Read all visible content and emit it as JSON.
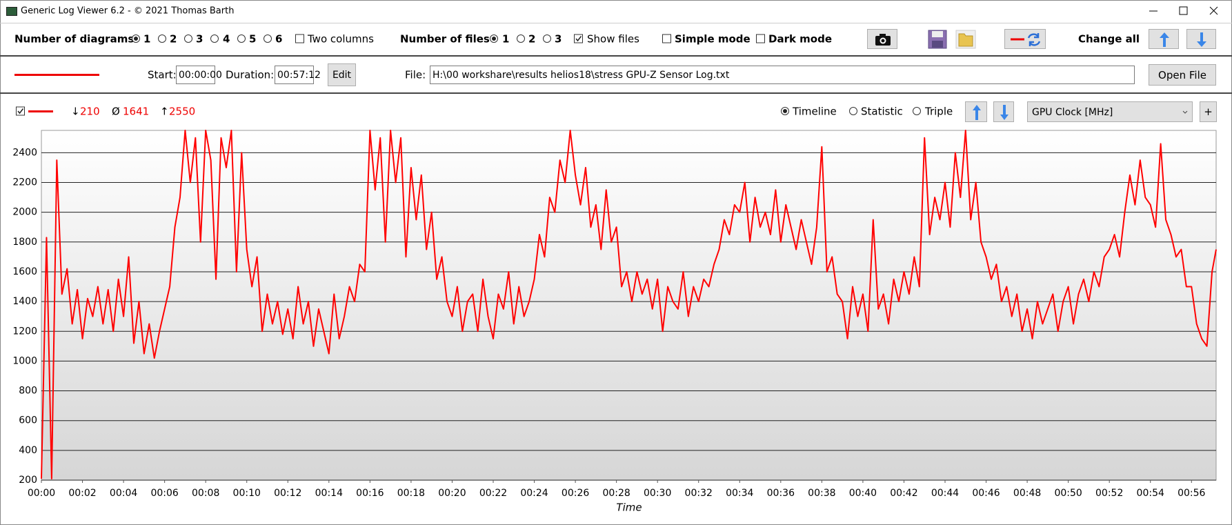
{
  "window": {
    "title": "Generic Log Viewer 6.2 - © 2021 Thomas Barth"
  },
  "toolbar": {
    "diagrams_label": "Number of diagrams",
    "diagram_options": [
      "1",
      "2",
      "3",
      "4",
      "5",
      "6"
    ],
    "two_columns": "Two columns",
    "files_label": "Number of files",
    "file_options": [
      "1",
      "2",
      "3"
    ],
    "show_files": "Show files",
    "simple_mode": "Simple mode",
    "dark_mode": "Dark mode",
    "change_all": "Change all"
  },
  "file_bar": {
    "start_label": "Start:",
    "start": "00:00:00",
    "duration_label": "Duration:",
    "duration": "00:57:12",
    "edit": "Edit",
    "file_label": "File:",
    "file_path": "H:\\00 workshare\\results helios18\\stress GPU-Z Sensor Log.txt",
    "open_file": "Open File"
  },
  "diagram_bar": {
    "min_symbol": "↓",
    "min": "210",
    "avg_symbol": "Ø",
    "avg": "1641",
    "max_symbol": "↑",
    "max": "2550",
    "views": [
      "Timeline",
      "Statistic",
      "Triple"
    ],
    "channel": "GPU Clock [MHz]",
    "add": "+"
  },
  "chart_data": {
    "type": "line",
    "x_label": "Time",
    "x": [
      0,
      0.25,
      0.5,
      0.75,
      1,
      1.25,
      1.5,
      1.75,
      2,
      2.25,
      2.5,
      2.75,
      3,
      3.25,
      3.5,
      3.75,
      4,
      4.25,
      4.5,
      4.75,
      5,
      5.25,
      5.5,
      5.75,
      6,
      6.25,
      6.5,
      6.75,
      7,
      7.25,
      7.5,
      7.75,
      8,
      8.25,
      8.5,
      8.75,
      9,
      9.25,
      9.5,
      9.75,
      10,
      10.25,
      10.5,
      10.75,
      11,
      11.25,
      11.5,
      11.75,
      12,
      12.25,
      12.5,
      12.75,
      13,
      13.25,
      13.5,
      13.75,
      14,
      14.25,
      14.5,
      14.75,
      15,
      15.25,
      15.5,
      15.75,
      16,
      16.25,
      16.5,
      16.75,
      17,
      17.25,
      17.5,
      17.75,
      18,
      18.25,
      18.5,
      18.75,
      19,
      19.25,
      19.5,
      19.75,
      20,
      20.25,
      20.5,
      20.75,
      21,
      21.25,
      21.5,
      21.75,
      22,
      22.25,
      22.5,
      22.75,
      23,
      23.25,
      23.5,
      23.75,
      24,
      24.25,
      24.5,
      24.75,
      25,
      25.25,
      25.5,
      25.75,
      26,
      26.25,
      26.5,
      26.75,
      27,
      27.25,
      27.5,
      27.75,
      28,
      28.25,
      28.5,
      28.75,
      29,
      29.25,
      29.5,
      29.75,
      30,
      30.25,
      30.5,
      30.75,
      31,
      31.25,
      31.5,
      31.75,
      32,
      32.25,
      32.5,
      32.75,
      33,
      33.25,
      33.5,
      33.75,
      34,
      34.25,
      34.5,
      34.75,
      35,
      35.25,
      35.5,
      35.75,
      36,
      36.25,
      36.5,
      36.75,
      37,
      37.25,
      37.5,
      37.75,
      38,
      38.25,
      38.5,
      38.75,
      39,
      39.25,
      39.5,
      39.75,
      40,
      40.25,
      40.5,
      40.75,
      41,
      41.25,
      41.5,
      41.75,
      42,
      42.25,
      42.5,
      42.75,
      43,
      43.25,
      43.5,
      43.75,
      44,
      44.25,
      44.5,
      44.75,
      45,
      45.25,
      45.5,
      45.75,
      46,
      46.25,
      46.5,
      46.75,
      47,
      47.25,
      47.5,
      47.75,
      48,
      48.25,
      48.5,
      48.75,
      49,
      49.25,
      49.5,
      49.75,
      50,
      50.25,
      50.5,
      50.75,
      51,
      51.25,
      51.5,
      51.75,
      52,
      52.25,
      52.5,
      52.75,
      53,
      53.25,
      53.5,
      53.75,
      54,
      54.25,
      54.5,
      54.75,
      55,
      55.25,
      55.5,
      55.75,
      56,
      56.25,
      56.5,
      56.75,
      57,
      57.2
    ],
    "series": [
      {
        "color": "#ff0000",
        "values": [
          210,
          1830,
          210,
          2350,
          1450,
          1620,
          1250,
          1480,
          1150,
          1420,
          1300,
          1500,
          1250,
          1480,
          1200,
          1550,
          1300,
          1700,
          1120,
          1400,
          1050,
          1250,
          1020,
          1200,
          1350,
          1500,
          1900,
          2100,
          2550,
          2200,
          2500,
          1800,
          2550,
          2350,
          1550,
          2500,
          2300,
          2550,
          1600,
          2400,
          1750,
          1500,
          1700,
          1200,
          1450,
          1250,
          1400,
          1180,
          1350,
          1150,
          1500,
          1250,
          1400,
          1100,
          1350,
          1200,
          1050,
          1450,
          1150,
          1300,
          1500,
          1400,
          1650,
          1600,
          2550,
          2150,
          2500,
          1800,
          2550,
          2200,
          2500,
          1700,
          2300,
          1950,
          2250,
          1750,
          2000,
          1550,
          1700,
          1400,
          1300,
          1500,
          1200,
          1400,
          1450,
          1200,
          1550,
          1300,
          1150,
          1450,
          1350,
          1600,
          1250,
          1500,
          1300,
          1400,
          1550,
          1850,
          1700,
          2100,
          2000,
          2350,
          2200,
          2550,
          2250,
          2050,
          2300,
          1900,
          2050,
          1750,
          2150,
          1800,
          1900,
          1500,
          1600,
          1400,
          1600,
          1450,
          1550,
          1350,
          1550,
          1200,
          1500,
          1400,
          1350,
          1600,
          1300,
          1500,
          1400,
          1550,
          1500,
          1650,
          1750,
          1950,
          1850,
          2050,
          2000,
          2200,
          1800,
          2100,
          1900,
          2000,
          1850,
          2150,
          1800,
          2050,
          1900,
          1750,
          1950,
          1800,
          1650,
          1900,
          2440,
          1600,
          1700,
          1450,
          1400,
          1150,
          1500,
          1300,
          1450,
          1200,
          1950,
          1350,
          1450,
          1250,
          1550,
          1400,
          1600,
          1450,
          1700,
          1500,
          2500,
          1850,
          2100,
          1950,
          2200,
          1900,
          2400,
          2100,
          2550,
          1950,
          2200,
          1800,
          1700,
          1550,
          1650,
          1400,
          1500,
          1300,
          1450,
          1200,
          1350,
          1150,
          1400,
          1250,
          1350,
          1450,
          1200,
          1400,
          1500,
          1250,
          1450,
          1550,
          1400,
          1600,
          1500,
          1700,
          1750,
          1850,
          1700,
          2000,
          2250,
          2050,
          2350,
          2100,
          2050,
          1900,
          2460,
          1950,
          1850,
          1700,
          1750,
          1500,
          1500,
          1250,
          1150,
          1100,
          1600,
          1750
        ]
      }
    ],
    "xlim": [
      0,
      57.2
    ],
    "xticks": [
      {
        "value": 0,
        "label": "00:00"
      },
      {
        "value": 2,
        "label": "00:02"
      },
      {
        "value": 4,
        "label": "00:04"
      },
      {
        "value": 6,
        "label": "00:06"
      },
      {
        "value": 8,
        "label": "00:08"
      },
      {
        "value": 10,
        "label": "00:10"
      },
      {
        "value": 12,
        "label": "00:12"
      },
      {
        "value": 14,
        "label": "00:14"
      },
      {
        "value": 16,
        "label": "00:16"
      },
      {
        "value": 18,
        "label": "00:18"
      },
      {
        "value": 20,
        "label": "00:20"
      },
      {
        "value": 22,
        "label": "00:22"
      },
      {
        "value": 24,
        "label": "00:24"
      },
      {
        "value": 26,
        "label": "00:26"
      },
      {
        "value": 28,
        "label": "00:28"
      },
      {
        "value": 30,
        "label": "00:30"
      },
      {
        "value": 32,
        "label": "00:32"
      },
      {
        "value": 34,
        "label": "00:34"
      },
      {
        "value": 36,
        "label": "00:36"
      },
      {
        "value": 38,
        "label": "00:38"
      },
      {
        "value": 40,
        "label": "00:40"
      },
      {
        "value": 42,
        "label": "00:42"
      },
      {
        "value": 44,
        "label": "00:44"
      },
      {
        "value": 46,
        "label": "00:46"
      },
      {
        "value": 48,
        "label": "00:48"
      },
      {
        "value": 50,
        "label": "00:50"
      },
      {
        "value": 52,
        "label": "00:52"
      },
      {
        "value": 54,
        "label": "00:54"
      },
      {
        "value": 56,
        "label": "00:56"
      }
    ],
    "ylim": [
      200,
      2550
    ],
    "yticks": [
      200,
      400,
      600,
      800,
      1000,
      1200,
      1400,
      1600,
      1800,
      2000,
      2200,
      2400
    ],
    "grid": true
  }
}
